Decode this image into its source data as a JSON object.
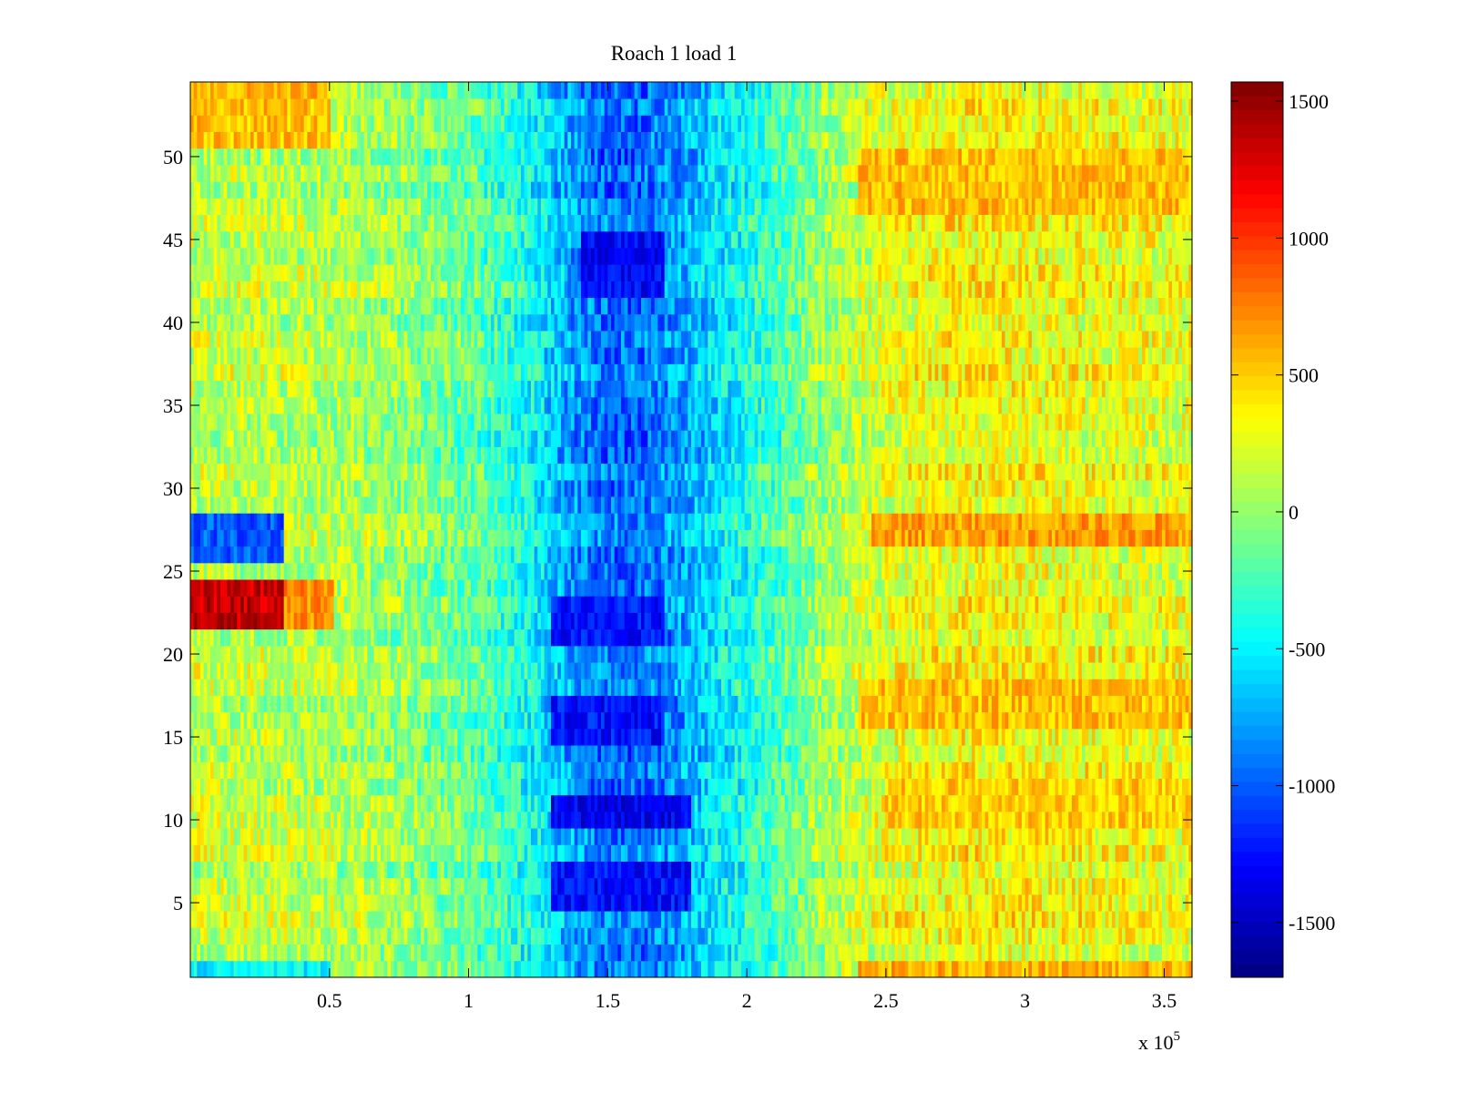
{
  "chart_data": {
    "type": "heatmap",
    "title": "Roach 1 load 1",
    "xlabel": "",
    "ylabel": "",
    "x_exponent_label": {
      "base": "x 10",
      "exponent": "5"
    },
    "xlim": [
      0,
      3.6
    ],
    "ylim": [
      0.5,
      54.5
    ],
    "x_ticks": [
      0.5,
      1,
      1.5,
      2,
      2.5,
      3,
      3.5
    ],
    "x_tick_labels": [
      "0.5",
      "1",
      "1.5",
      "2",
      "2.5",
      "3",
      "3.5"
    ],
    "y_ticks": [
      5,
      10,
      15,
      20,
      25,
      30,
      35,
      40,
      45,
      50
    ],
    "y_tick_labels": [
      "5",
      "10",
      "15",
      "20",
      "25",
      "30",
      "35",
      "40",
      "45",
      "50"
    ],
    "rows": 54,
    "colormap": "jet",
    "colorbar": {
      "clim": [
        -1700,
        1570
      ],
      "ticks": [
        -1500,
        -1000,
        -500,
        0,
        500,
        1000,
        1500
      ],
      "tick_labels": [
        "-1500",
        "-1000",
        "-500",
        "0",
        "500",
        "1000",
        "1500"
      ]
    },
    "grid": false,
    "value_profile_x": [
      0,
      0.5,
      0.75,
      1.0,
      1.2,
      1.35,
      1.5,
      1.6,
      1.75,
      1.9,
      2.1,
      2.3,
      2.5,
      2.8,
      3.2,
      3.6
    ],
    "value_profile_mean": [
      150,
      100,
      0,
      -150,
      -400,
      -750,
      -950,
      -950,
      -800,
      -550,
      -250,
      50,
      250,
      350,
      300,
      250
    ],
    "row_features": [
      {
        "rows": [
          22,
          24
        ],
        "x_range": [
          0,
          0.34
        ],
        "mean_value": 1350
      },
      {
        "rows": [
          22,
          24
        ],
        "x_range": [
          0.34,
          0.52
        ],
        "mean_value": 700
      },
      {
        "rows": [
          26,
          28
        ],
        "x_range": [
          0,
          0.34
        ],
        "mean_value": -1000
      },
      {
        "rows": [
          27,
          28
        ],
        "x_range": [
          2.45,
          3.6
        ],
        "mean_value": 650
      },
      {
        "rows": [
          16,
          18
        ],
        "x_range": [
          2.4,
          3.6
        ],
        "mean_value": 550
      },
      {
        "rows": [
          10,
          12
        ],
        "x_range": [
          2.5,
          3.6
        ],
        "mean_value": 500
      },
      {
        "rows": [
          47,
          50
        ],
        "x_range": [
          2.4,
          3.6
        ],
        "mean_value": 550
      },
      {
        "rows": [
          51,
          54
        ],
        "x_range": [
          0,
          0.5
        ],
        "mean_value": 550
      },
      {
        "rows": [
          1,
          1
        ],
        "x_range": [
          2.4,
          3.6
        ],
        "mean_value": 600
      },
      {
        "rows": [
          1,
          1
        ],
        "x_range": [
          0,
          0.5
        ],
        "mean_value": -500
      },
      {
        "rows": [
          10,
          11
        ],
        "x_range": [
          1.3,
          1.8
        ],
        "mean_value": -1350
      },
      {
        "rows": [
          5,
          7
        ],
        "x_range": [
          1.3,
          1.8
        ],
        "mean_value": -1250
      },
      {
        "rows": [
          15,
          17
        ],
        "x_range": [
          1.3,
          1.7
        ],
        "mean_value": -1250
      },
      {
        "rows": [
          21,
          23
        ],
        "x_range": [
          1.3,
          1.7
        ],
        "mean_value": -1250
      },
      {
        "rows": [
          42,
          45
        ],
        "x_range": [
          1.4,
          1.7
        ],
        "mean_value": -1300
      }
    ]
  }
}
